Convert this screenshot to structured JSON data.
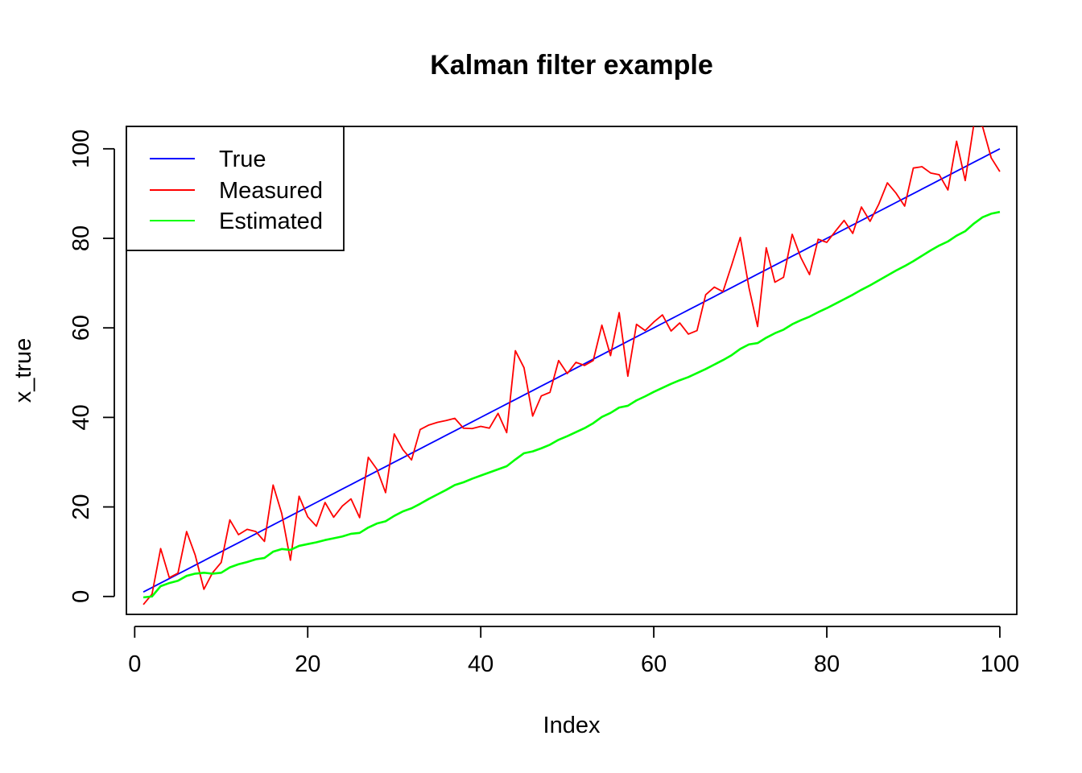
{
  "chart_data": {
    "type": "line",
    "title": "Kalman filter example",
    "xlabel": "Index",
    "ylabel": "x_true",
    "xlim": [
      -0.96,
      101.96
    ],
    "ylim": [
      -4.0,
      105.0
    ],
    "xticks": [
      0,
      20,
      40,
      60,
      80,
      100
    ],
    "yticks": [
      0,
      20,
      40,
      60,
      80,
      100
    ],
    "grid": false,
    "legend_position": "top-left",
    "series": [
      {
        "name": "True",
        "color": "#0000ff",
        "x": [
          1,
          2,
          3,
          4,
          5,
          6,
          7,
          8,
          9,
          10,
          11,
          12,
          13,
          14,
          15,
          16,
          17,
          18,
          19,
          20,
          21,
          22,
          23,
          24,
          25,
          26,
          27,
          28,
          29,
          30,
          31,
          32,
          33,
          34,
          35,
          36,
          37,
          38,
          39,
          40,
          41,
          42,
          43,
          44,
          45,
          46,
          47,
          48,
          49,
          50,
          51,
          52,
          53,
          54,
          55,
          56,
          57,
          58,
          59,
          60,
          61,
          62,
          63,
          64,
          65,
          66,
          67,
          68,
          69,
          70,
          71,
          72,
          73,
          74,
          75,
          76,
          77,
          78,
          79,
          80,
          81,
          82,
          83,
          84,
          85,
          86,
          87,
          88,
          89,
          90,
          91,
          92,
          93,
          94,
          95,
          96,
          97,
          98,
          99,
          100
        ],
        "values": [
          1,
          2,
          3,
          4,
          5,
          6,
          7,
          8,
          9,
          10,
          11,
          12,
          13,
          14,
          15,
          16,
          17,
          18,
          19,
          20,
          21,
          22,
          23,
          24,
          25,
          26,
          27,
          28,
          29,
          30,
          31,
          32,
          33,
          34,
          35,
          36,
          37,
          38,
          39,
          40,
          41,
          42,
          43,
          44,
          45,
          46,
          47,
          48,
          49,
          50,
          51,
          52,
          53,
          54,
          55,
          56,
          57,
          58,
          59,
          60,
          61,
          62,
          63,
          64,
          65,
          66,
          67,
          68,
          69,
          70,
          71,
          72,
          73,
          74,
          75,
          76,
          77,
          78,
          79,
          80,
          81,
          82,
          83,
          84,
          85,
          86,
          87,
          88,
          89,
          90,
          91,
          92,
          93,
          94,
          95,
          96,
          97,
          98,
          99,
          100
        ]
      },
      {
        "name": "Measured",
        "color": "#ff0000",
        "x": [
          1,
          2,
          3,
          4,
          5,
          6,
          7,
          8,
          9,
          10,
          11,
          12,
          13,
          14,
          15,
          16,
          17,
          18,
          19,
          20,
          21,
          22,
          23,
          24,
          25,
          26,
          27,
          28,
          29,
          30,
          31,
          32,
          33,
          34,
          35,
          36,
          37,
          38,
          39,
          40,
          41,
          42,
          43,
          44,
          45,
          46,
          47,
          48,
          49,
          50,
          51,
          52,
          53,
          54,
          55,
          56,
          57,
          58,
          59,
          60,
          61,
          62,
          63,
          64,
          65,
          66,
          67,
          68,
          69,
          70,
          71,
          72,
          73,
          74,
          75,
          76,
          77,
          78,
          79,
          80,
          81,
          82,
          83,
          84,
          85,
          86,
          87,
          88,
          89,
          90,
          91,
          92,
          93,
          94,
          95,
          96,
          97,
          98,
          99,
          100
        ],
        "values": [
          -1.8,
          0.5,
          10.7,
          4.2,
          5.2,
          14.5,
          9.2,
          1.6,
          5.3,
          7.6,
          17.1,
          13.8,
          15.0,
          14.5,
          12.3,
          24.9,
          18.5,
          8.1,
          22.4,
          17.8,
          15.7,
          21.0,
          17.7,
          20.2,
          21.8,
          17.6,
          31.1,
          28.4,
          23.2,
          36.3,
          32.8,
          30.5,
          37.3,
          38.3,
          38.9,
          39.3,
          39.8,
          37.6,
          37.5,
          38.0,
          37.6,
          40.9,
          36.6,
          54.9,
          51.1,
          40.3,
          44.8,
          45.6,
          52.7,
          49.8,
          52.3,
          51.6,
          52.7,
          60.6,
          53.8,
          63.4,
          49.2,
          60.8,
          59.4,
          61.3,
          62.9,
          59.3,
          61.1,
          58.6,
          59.4,
          67.4,
          69.1,
          68.1,
          74.0,
          80.2,
          69.0,
          60.3,
          77.9,
          70.2,
          71.3,
          80.9,
          75.7,
          71.9,
          79.8,
          79.1,
          81.6,
          84.0,
          81.1,
          87.0,
          83.8,
          87.6,
          92.4,
          90.1,
          87.2,
          95.7,
          96.0,
          94.6,
          94.2,
          90.8,
          101.7,
          92.9,
          105.5,
          105.0,
          98.0,
          94.9
        ]
      },
      {
        "name": "Estimated",
        "color": "#00ff00",
        "x": [
          1,
          2,
          3,
          4,
          5,
          6,
          7,
          8,
          9,
          10,
          11,
          12,
          13,
          14,
          15,
          16,
          17,
          18,
          19,
          20,
          21,
          22,
          23,
          24,
          25,
          26,
          27,
          28,
          29,
          30,
          31,
          32,
          33,
          34,
          35,
          36,
          37,
          38,
          39,
          40,
          41,
          42,
          43,
          44,
          45,
          46,
          47,
          48,
          49,
          50,
          51,
          52,
          53,
          54,
          55,
          56,
          57,
          58,
          59,
          60,
          61,
          62,
          63,
          64,
          65,
          66,
          67,
          68,
          69,
          70,
          71,
          72,
          73,
          74,
          75,
          76,
          77,
          78,
          79,
          80,
          81,
          82,
          83,
          84,
          85,
          86,
          87,
          88,
          89,
          90,
          91,
          92,
          93,
          94,
          95,
          96,
          97,
          98,
          99,
          100
        ],
        "values": [
          -0.2,
          0.0,
          2.3,
          3.0,
          3.5,
          4.6,
          5.1,
          5.3,
          5.1,
          5.3,
          6.5,
          7.2,
          7.7,
          8.3,
          8.6,
          10.0,
          10.6,
          10.4,
          11.3,
          11.7,
          12.1,
          12.6,
          13.0,
          13.4,
          14.0,
          14.2,
          15.4,
          16.3,
          16.8,
          18.0,
          19.0,
          19.7,
          20.7,
          21.8,
          22.8,
          23.8,
          24.9,
          25.5,
          26.3,
          27.0,
          27.7,
          28.4,
          29.1,
          30.6,
          32.0,
          32.4,
          33.1,
          33.9,
          35.0,
          35.8,
          36.7,
          37.6,
          38.7,
          40.1,
          41.0,
          42.2,
          42.6,
          43.8,
          44.7,
          45.7,
          46.6,
          47.5,
          48.3,
          49.0,
          49.9,
          50.8,
          51.8,
          52.8,
          53.9,
          55.3,
          56.3,
          56.6,
          57.8,
          58.8,
          59.6,
          60.8,
          61.7,
          62.5,
          63.5,
          64.4,
          65.4,
          66.4,
          67.4,
          68.5,
          69.5,
          70.6,
          71.7,
          72.8,
          73.8,
          74.9,
          76.1,
          77.3,
          78.4,
          79.3,
          80.6,
          81.6,
          83.3,
          84.7,
          85.5,
          85.9
        ]
      }
    ]
  }
}
